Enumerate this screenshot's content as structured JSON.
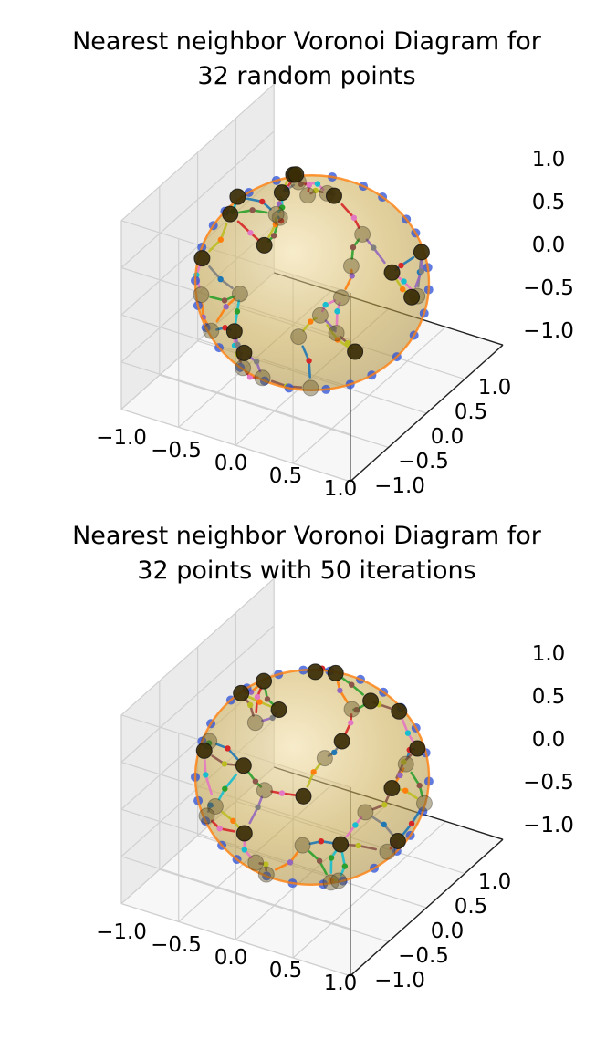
{
  "chart_data": [
    {
      "type": "scatter3d",
      "title_lines": [
        "Nearest neighbor Voronoi Diagram for",
        "32 random points"
      ],
      "num_points": 32,
      "iterations": null,
      "xlim": [
        -1.0,
        1.0
      ],
      "ylim": [
        -1.0,
        1.0
      ],
      "zlim": [
        -1.0,
        1.0
      ],
      "x_ticks": [
        "−1.0",
        "−0.5",
        "0.0",
        "0.5",
        "1.0"
      ],
      "y_ticks": [
        "−1.0",
        "−0.5",
        "0.0",
        "0.5",
        "1.0"
      ],
      "z_ticks": [
        "−1.0",
        "−0.5",
        "0.0",
        "0.5",
        "1.0"
      ],
      "grid": true,
      "sphere_color": "#c9a84a",
      "point_color": "#1a1a1a",
      "vertex_color": "#2a4fd6",
      "seed": 7
    },
    {
      "type": "scatter3d",
      "title_lines": [
        "Nearest neighbor Voronoi Diagram for",
        "32 points with 50 iterations"
      ],
      "num_points": 32,
      "iterations": 50,
      "xlim": [
        -1.0,
        1.0
      ],
      "ylim": [
        -1.0,
        1.0
      ],
      "zlim": [
        -1.0,
        1.0
      ],
      "x_ticks": [
        "−1.0",
        "−0.5",
        "0.0",
        "0.5",
        "1.0"
      ],
      "y_ticks": [
        "−1.0",
        "−0.5",
        "0.0",
        "0.5",
        "1.0"
      ],
      "z_ticks": [
        "−1.0",
        "−0.5",
        "0.0",
        "0.5",
        "1.0"
      ],
      "grid": true,
      "sphere_color": "#c9a84a",
      "point_color": "#1a1a1a",
      "vertex_color": "#2a4fd6",
      "seed": 21
    }
  ],
  "palette": [
    "#1f77b4",
    "#ff7f0e",
    "#2ca02c",
    "#d62728",
    "#9467bd",
    "#8c564b",
    "#e377c2",
    "#7f7f7f",
    "#bcbd22",
    "#17becf"
  ]
}
